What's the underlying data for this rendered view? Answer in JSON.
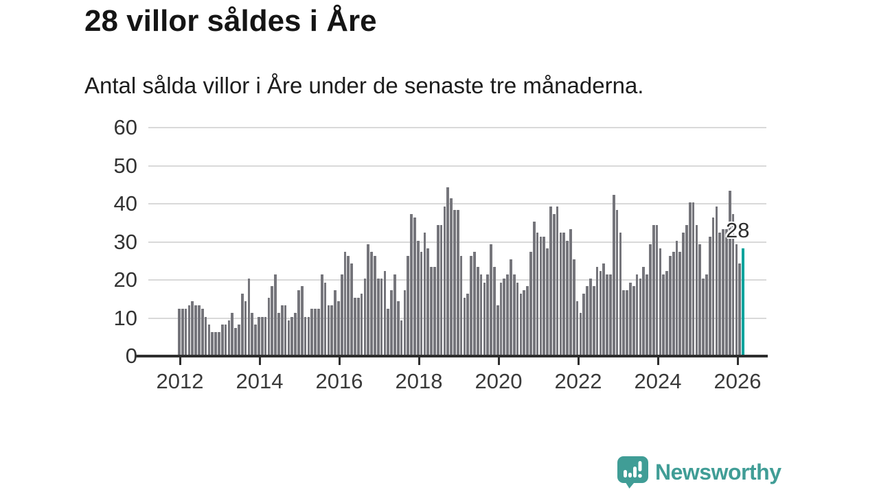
{
  "header": {
    "title": "28 villor såldes i Åre",
    "subtitle": "Antal sålda villor i Åre under de senaste tre månaderna."
  },
  "chart_data": {
    "type": "bar",
    "title": "28 villor såldes i Åre",
    "subtitle": "Antal sålda villor i Åre under de senaste tre månaderna.",
    "xlabel": "",
    "ylabel": "",
    "x_unit": "month",
    "x_start": "2012-01",
    "x_tick_labels": [
      "2012",
      "2014",
      "2016",
      "2018",
      "2020",
      "2022",
      "2024",
      "2026"
    ],
    "y_ticks": [
      0,
      10,
      20,
      30,
      40,
      50,
      60
    ],
    "ylim": [
      0,
      60
    ],
    "grid": true,
    "legend": false,
    "bar_color": "#75757b",
    "highlight_color": "#00a39c",
    "highlight_index": 170,
    "highlight_label": "28",
    "values": [
      12,
      12,
      12,
      13,
      14,
      13,
      13,
      12,
      10,
      8,
      6,
      6,
      6,
      8,
      8,
      9,
      11,
      7,
      8,
      16,
      14,
      20,
      11,
      8,
      10,
      10,
      10,
      15,
      18,
      21,
      11,
      13,
      13,
      9,
      10,
      11,
      17,
      18,
      10,
      10,
      12,
      12,
      12,
      21,
      19,
      13,
      13,
      17,
      14,
      21,
      27,
      26,
      24,
      15,
      15,
      16,
      20,
      29,
      27,
      26,
      20,
      20,
      22,
      12,
      17,
      21,
      14,
      9,
      17,
      26,
      37,
      36,
      30,
      27,
      32,
      28,
      23,
      23,
      34,
      34,
      39,
      44,
      41,
      38,
      38,
      26,
      15,
      16,
      26,
      27,
      23,
      21,
      19,
      21,
      29,
      23,
      13,
      19,
      20,
      21,
      25,
      21,
      19,
      16,
      17,
      18,
      27,
      35,
      32,
      31,
      31,
      28,
      39,
      37,
      39,
      32,
      32,
      30,
      33,
      25,
      14,
      11,
      16,
      18,
      20,
      18,
      23,
      22,
      24,
      21,
      21,
      42,
      38,
      32,
      17,
      17,
      19,
      18,
      21,
      20,
      23,
      21,
      29,
      34,
      34,
      28,
      21,
      22,
      26,
      27,
      30,
      27,
      32,
      34,
      40,
      40,
      34,
      29,
      20,
      21,
      31,
      36,
      39,
      32,
      33,
      33,
      43,
      37,
      29,
      24,
      28
    ]
  },
  "annotation": {
    "value_label": "28"
  },
  "branding": {
    "label": "Newsworthy",
    "color": "#409d96",
    "icon": "newsworthy-logo-icon"
  }
}
